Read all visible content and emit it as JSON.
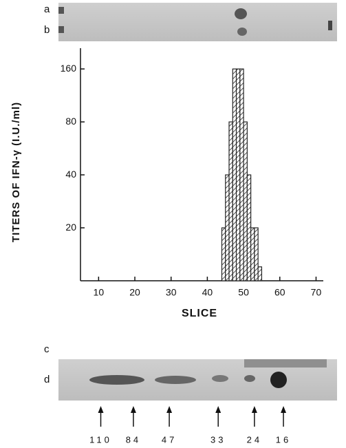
{
  "chart_data": {
    "type": "histogram",
    "ylabel": "TITERS OF IFN-γ (I.U./ml)",
    "xlabel": "SLICE",
    "bins": [
      44,
      45,
      46,
      47,
      48,
      49,
      50,
      51,
      52,
      53,
      54,
      55
    ],
    "counts": [
      20,
      40,
      80,
      160,
      160,
      160,
      80,
      40,
      20,
      20,
      12
    ],
    "color": "#222222",
    "ylog": true,
    "ylim": [
      10,
      210
    ],
    "yticks": [
      20,
      40,
      80,
      160
    ],
    "xlim": [
      5,
      72
    ],
    "xticks": [
      10,
      20,
      30,
      40,
      50,
      60,
      70
    ],
    "gel_lanes": [
      "a",
      "b",
      "c",
      "d"
    ],
    "markers": {
      "x": [
        10.6,
        19.6,
        29.5,
        43,
        53,
        61
      ],
      "labels": [
        "110",
        "84",
        "47",
        "33",
        "24",
        "16"
      ]
    }
  }
}
